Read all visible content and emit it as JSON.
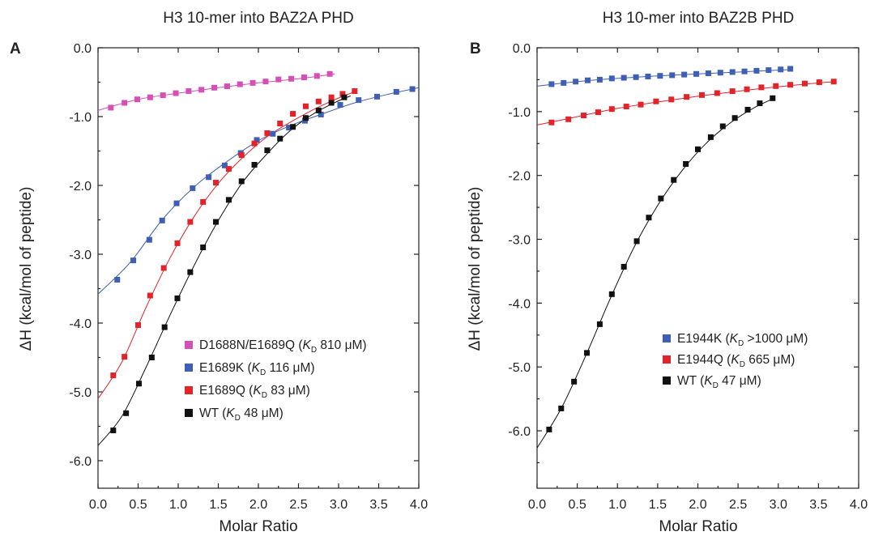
{
  "chart_data": [
    {
      "type": "scatter",
      "panel": "A",
      "title": "H3 10-mer into BAZ2A PHD",
      "xlabel": "Molar Ratio",
      "ylabel": "ΔH (kcal/mol of peptide)",
      "xlim": [
        0.0,
        4.0
      ],
      "ylim": [
        -6.4,
        0.0
      ],
      "xticks": [
        "0.0",
        "0.5",
        "1.0",
        "1.5",
        "2.0",
        "2.5",
        "3.0",
        "3.5",
        "4.0"
      ],
      "yticks": [
        "0.0",
        "-1.0",
        "-2.0",
        "-3.0",
        "-4.0",
        "-5.0",
        "-6.0"
      ],
      "legend_position": "lower-right",
      "series": [
        {
          "name": "D1688N/E1689Q",
          "kd_label": "810 μM",
          "color": "#d54fb6",
          "x": [
            0.16,
            0.33,
            0.49,
            0.65,
            0.81,
            0.97,
            1.13,
            1.29,
            1.45,
            1.61,
            1.77,
            1.93,
            2.09,
            2.25,
            2.41,
            2.57,
            2.73,
            2.89
          ],
          "y": [
            -0.87,
            -0.8,
            -0.75,
            -0.72,
            -0.69,
            -0.66,
            -0.63,
            -0.61,
            -0.58,
            -0.56,
            -0.53,
            -0.51,
            -0.49,
            -0.46,
            -0.45,
            -0.43,
            -0.41,
            -0.38
          ],
          "fit_x": [
            0.0,
            0.5,
            1.0,
            1.5,
            2.0,
            2.5,
            2.95
          ],
          "fit_y": [
            -0.91,
            -0.75,
            -0.66,
            -0.58,
            -0.51,
            -0.45,
            -0.38
          ]
        },
        {
          "name": "E1689K",
          "kd_label": "116 μM",
          "color": "#3f5fb4",
          "x": [
            0.24,
            0.44,
            0.64,
            0.8,
            0.98,
            1.18,
            1.38,
            1.58,
            1.78,
            1.98,
            2.18,
            2.38,
            2.58,
            2.78,
            3.02,
            3.25,
            3.48,
            3.72,
            3.92
          ],
          "y": [
            -3.37,
            -3.09,
            -2.79,
            -2.51,
            -2.26,
            -2.04,
            -1.88,
            -1.71,
            -1.53,
            -1.34,
            -1.25,
            -1.16,
            -1.06,
            -0.97,
            -0.83,
            -0.76,
            -0.71,
            -0.64,
            -0.6
          ],
          "fit_x": [
            0.0,
            0.4,
            0.8,
            1.2,
            1.6,
            2.0,
            2.4,
            2.8,
            3.2,
            3.6,
            4.0
          ],
          "fit_y": [
            -3.58,
            -3.12,
            -2.5,
            -2.02,
            -1.66,
            -1.35,
            -1.13,
            -0.96,
            -0.8,
            -0.68,
            -0.58
          ]
        },
        {
          "name": "E1689Q",
          "kd_label": "83 μM",
          "color": "#e2232a",
          "x": [
            0.19,
            0.33,
            0.5,
            0.65,
            0.82,
            0.99,
            1.15,
            1.31,
            1.47,
            1.63,
            1.79,
            1.95,
            2.11,
            2.27,
            2.43,
            2.59,
            2.75,
            2.91,
            3.05,
            3.2
          ],
          "y": [
            -4.76,
            -4.49,
            -4.03,
            -3.6,
            -3.2,
            -2.84,
            -2.53,
            -2.24,
            -1.96,
            -1.76,
            -1.56,
            -1.39,
            -1.24,
            -1.1,
            -0.96,
            -0.85,
            -0.78,
            -0.72,
            -0.67,
            -0.63
          ],
          "fit_x": [
            0.0,
            0.3,
            0.6,
            0.9,
            1.2,
            1.5,
            1.8,
            2.1,
            2.4,
            2.7,
            3.0,
            3.2
          ],
          "fit_y": [
            -5.1,
            -4.56,
            -3.77,
            -3.05,
            -2.45,
            -1.97,
            -1.6,
            -1.3,
            -1.08,
            -0.89,
            -0.73,
            -0.64
          ]
        },
        {
          "name": "WT",
          "kd_label": "48 μM",
          "color": "#111111",
          "x": [
            0.19,
            0.35,
            0.51,
            0.67,
            0.83,
            0.99,
            1.15,
            1.31,
            1.47,
            1.63,
            1.79,
            1.95,
            2.11,
            2.27,
            2.43,
            2.59,
            2.75,
            2.91,
            3.07
          ],
          "y": [
            -5.56,
            -5.31,
            -4.88,
            -4.5,
            -4.06,
            -3.64,
            -3.26,
            -2.9,
            -2.53,
            -2.21,
            -1.94,
            -1.7,
            -1.49,
            -1.32,
            -1.15,
            -1.02,
            -0.91,
            -0.8,
            -0.72
          ],
          "fit_x": [
            0.0,
            0.3,
            0.6,
            0.9,
            1.2,
            1.5,
            1.8,
            2.1,
            2.4,
            2.7,
            3.0,
            3.15
          ],
          "fit_y": [
            -5.78,
            -5.35,
            -4.64,
            -3.88,
            -3.16,
            -2.51,
            -1.96,
            -1.55,
            -1.2,
            -0.95,
            -0.77,
            -0.7
          ]
        }
      ]
    },
    {
      "type": "scatter",
      "panel": "B",
      "title": "H3 10-mer into BAZ2B PHD",
      "xlabel": "Molar Ratio",
      "ylabel": "ΔH (kcal/mol of peptide)",
      "xlim": [
        0.0,
        4.0
      ],
      "ylim": [
        -6.9,
        0.0
      ],
      "xticks": [
        "0.0",
        "0.5",
        "1.0",
        "1.5",
        "2.0",
        "2.5",
        "3.0",
        "3.5",
        "4.0"
      ],
      "yticks": [
        "0.0",
        "-1.0",
        "-2.0",
        "-3.0",
        "-4.0",
        "-5.0",
        "-6.0"
      ],
      "legend_position": "center-right",
      "series": [
        {
          "name": "E1944K",
          "kd_label": ">1000 μM",
          "color": "#3f5fb4",
          "x": [
            0.18,
            0.33,
            0.48,
            0.63,
            0.78,
            0.93,
            1.08,
            1.23,
            1.38,
            1.53,
            1.68,
            1.83,
            1.98,
            2.13,
            2.28,
            2.43,
            2.58,
            2.73,
            2.88,
            3.03,
            3.15
          ],
          "y": [
            -0.57,
            -0.55,
            -0.53,
            -0.51,
            -0.5,
            -0.48,
            -0.47,
            -0.46,
            -0.45,
            -0.44,
            -0.43,
            -0.42,
            -0.41,
            -0.4,
            -0.39,
            -0.38,
            -0.37,
            -0.36,
            -0.35,
            -0.34,
            -0.33
          ],
          "fit_x": [
            0.0,
            0.5,
            1.0,
            1.5,
            2.0,
            2.5,
            3.0,
            3.15
          ],
          "fit_y": [
            -0.6,
            -0.53,
            -0.48,
            -0.44,
            -0.41,
            -0.38,
            -0.35,
            -0.34
          ]
        },
        {
          "name": "E1944Q",
          "kd_label": "665 μM",
          "color": "#e2232a",
          "x": [
            0.18,
            0.39,
            0.58,
            0.76,
            0.93,
            1.11,
            1.29,
            1.48,
            1.67,
            1.86,
            2.05,
            2.24,
            2.43,
            2.61,
            2.79,
            2.97,
            3.15,
            3.33,
            3.51,
            3.69
          ],
          "y": [
            -1.17,
            -1.12,
            -1.06,
            -1.01,
            -0.96,
            -0.92,
            -0.89,
            -0.84,
            -0.81,
            -0.77,
            -0.74,
            -0.71,
            -0.68,
            -0.65,
            -0.62,
            -0.6,
            -0.58,
            -0.56,
            -0.54,
            -0.53
          ],
          "fit_x": [
            0.0,
            0.5,
            1.0,
            1.5,
            2.0,
            2.5,
            3.0,
            3.5,
            3.72
          ],
          "fit_y": [
            -1.21,
            -1.08,
            -0.95,
            -0.85,
            -0.76,
            -0.68,
            -0.61,
            -0.55,
            -0.53
          ]
        },
        {
          "name": "WT",
          "kd_label": "47 μM",
          "color": "#111111",
          "x": [
            0.15,
            0.3,
            0.46,
            0.62,
            0.78,
            0.93,
            1.08,
            1.24,
            1.39,
            1.54,
            1.7,
            1.85,
            2.0,
            2.16,
            2.31,
            2.46,
            2.62,
            2.77,
            2.93
          ],
          "y": [
            -5.98,
            -5.65,
            -5.23,
            -4.78,
            -4.33,
            -3.86,
            -3.43,
            -3.03,
            -2.66,
            -2.36,
            -2.07,
            -1.82,
            -1.59,
            -1.4,
            -1.23,
            -1.1,
            -0.97,
            -0.87,
            -0.79
          ],
          "fit_x": [
            0.0,
            0.3,
            0.6,
            0.9,
            1.2,
            1.5,
            1.8,
            2.1,
            2.4,
            2.7,
            2.95
          ],
          "fit_y": [
            -6.27,
            -5.65,
            -4.84,
            -3.96,
            -3.14,
            -2.47,
            -1.93,
            -1.5,
            -1.18,
            -0.94,
            -0.79
          ]
        }
      ]
    }
  ],
  "kd_symbol": "K",
  "kd_subscript": "D"
}
